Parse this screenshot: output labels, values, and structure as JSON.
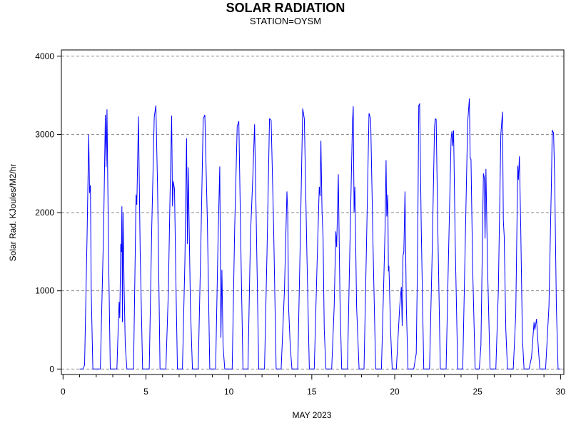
{
  "title": "SOLAR RADIATION",
  "subtitle": "STATION=OYSM",
  "chart_data": {
    "type": "line",
    "title": "SOLAR RADIATION",
    "subtitle": "STATION=OYSM",
    "xlabel": "MAY 2023",
    "ylabel": "Solar Rad. KJoules/M2/hr",
    "xlim": [
      -0.1,
      30.2
    ],
    "ylim": [
      -70,
      4080
    ],
    "x_ticks": [
      0,
      5,
      10,
      15,
      20,
      25,
      30
    ],
    "y_ticks": [
      0,
      1000,
      2000,
      3000,
      4000
    ],
    "grid": "horizontal dashed",
    "line_color": "#0000ff",
    "series": [
      {
        "points": [
          [
            1.0,
            0
          ],
          [
            1.2,
            0
          ],
          [
            1.3,
            50
          ],
          [
            1.45,
            1700
          ],
          [
            1.55,
            3000
          ],
          [
            1.6,
            2250
          ],
          [
            1.65,
            2350
          ],
          [
            1.7,
            1000
          ],
          [
            1.8,
            0
          ],
          [
            2.25,
            0
          ],
          [
            2.45,
            1800
          ],
          [
            2.55,
            3250
          ],
          [
            2.6,
            2580
          ],
          [
            2.65,
            3320
          ],
          [
            2.75,
            1400
          ],
          [
            2.85,
            0
          ],
          [
            3.25,
            0
          ],
          [
            3.35,
            700
          ],
          [
            3.38,
            860
          ],
          [
            3.42,
            650
          ],
          [
            3.48,
            1600
          ],
          [
            3.52,
            1500
          ],
          [
            3.55,
            2080
          ],
          [
            3.58,
            600
          ],
          [
            3.62,
            2000
          ],
          [
            3.68,
            1100
          ],
          [
            3.75,
            300
          ],
          [
            3.85,
            0
          ],
          [
            4.25,
            0
          ],
          [
            4.35,
            1450
          ],
          [
            4.4,
            2230
          ],
          [
            4.45,
            2100
          ],
          [
            4.55,
            3230
          ],
          [
            4.65,
            1500
          ],
          [
            4.8,
            0
          ],
          [
            5.2,
            0
          ],
          [
            5.35,
            1800
          ],
          [
            5.5,
            3220
          ],
          [
            5.6,
            3370
          ],
          [
            5.7,
            2300
          ],
          [
            5.85,
            0
          ],
          [
            6.2,
            0
          ],
          [
            6.35,
            1000
          ],
          [
            6.45,
            2200
          ],
          [
            6.55,
            3240
          ],
          [
            6.6,
            2080
          ],
          [
            6.65,
            2400
          ],
          [
            6.72,
            2300
          ],
          [
            6.8,
            1200
          ],
          [
            6.9,
            0
          ],
          [
            7.2,
            0
          ],
          [
            7.35,
            1400
          ],
          [
            7.45,
            2950
          ],
          [
            7.5,
            1600
          ],
          [
            7.55,
            2580
          ],
          [
            7.68,
            800
          ],
          [
            7.8,
            0
          ],
          [
            8.15,
            0
          ],
          [
            8.3,
            1500
          ],
          [
            8.45,
            3200
          ],
          [
            8.55,
            3250
          ],
          [
            8.7,
            1900
          ],
          [
            8.85,
            0
          ],
          [
            9.2,
            0
          ],
          [
            9.35,
            1700
          ],
          [
            9.45,
            2590
          ],
          [
            9.52,
            400
          ],
          [
            9.58,
            1270
          ],
          [
            9.65,
            300
          ],
          [
            9.75,
            0
          ],
          [
            10.2,
            0
          ],
          [
            10.35,
            1800
          ],
          [
            10.5,
            3100
          ],
          [
            10.6,
            3170
          ],
          [
            10.75,
            1200
          ],
          [
            10.85,
            0
          ],
          [
            11.15,
            0
          ],
          [
            11.3,
            1700
          ],
          [
            11.45,
            2500
          ],
          [
            11.55,
            3130
          ],
          [
            11.65,
            1900
          ],
          [
            11.8,
            0
          ],
          [
            12.15,
            0
          ],
          [
            12.3,
            1500
          ],
          [
            12.45,
            3200
          ],
          [
            12.55,
            3180
          ],
          [
            12.7,
            1800
          ],
          [
            12.85,
            0
          ],
          [
            13.15,
            0
          ],
          [
            13.35,
            1000
          ],
          [
            13.5,
            2270
          ],
          [
            13.55,
            2000
          ],
          [
            13.6,
            800
          ],
          [
            13.7,
            300
          ],
          [
            13.8,
            0
          ],
          [
            14.15,
            0
          ],
          [
            14.3,
            1600
          ],
          [
            14.45,
            3330
          ],
          [
            14.55,
            3200
          ],
          [
            14.7,
            1500
          ],
          [
            14.85,
            0
          ],
          [
            15.15,
            0
          ],
          [
            15.3,
            1200
          ],
          [
            15.45,
            2330
          ],
          [
            15.5,
            2210
          ],
          [
            15.55,
            2920
          ],
          [
            15.62,
            2000
          ],
          [
            15.68,
            1700
          ],
          [
            15.75,
            500
          ],
          [
            15.85,
            0
          ],
          [
            16.2,
            0
          ],
          [
            16.35,
            800
          ],
          [
            16.45,
            1760
          ],
          [
            16.5,
            1560
          ],
          [
            16.6,
            2490
          ],
          [
            16.7,
            900
          ],
          [
            16.8,
            0
          ],
          [
            17.15,
            0
          ],
          [
            17.3,
            1600
          ],
          [
            17.45,
            3150
          ],
          [
            17.5,
            3360
          ],
          [
            17.55,
            2000
          ],
          [
            17.6,
            2330
          ],
          [
            17.7,
            800
          ],
          [
            17.85,
            0
          ],
          [
            18.15,
            0
          ],
          [
            18.3,
            1600
          ],
          [
            18.45,
            3270
          ],
          [
            18.55,
            3200
          ],
          [
            18.7,
            1500
          ],
          [
            18.85,
            0
          ],
          [
            19.2,
            0
          ],
          [
            19.35,
            1200
          ],
          [
            19.42,
            1800
          ],
          [
            19.48,
            2670
          ],
          [
            19.52,
            1950
          ],
          [
            19.58,
            2230
          ],
          [
            19.62,
            1250
          ],
          [
            19.65,
            1320
          ],
          [
            19.75,
            500
          ],
          [
            19.85,
            0
          ],
          [
            20.1,
            0
          ],
          [
            20.3,
            800
          ],
          [
            20.4,
            1050
          ],
          [
            20.45,
            550
          ],
          [
            20.5,
            1450
          ],
          [
            20.55,
            1500
          ],
          [
            20.62,
            2270
          ],
          [
            20.7,
            800
          ],
          [
            20.8,
            0
          ],
          [
            21.15,
            0
          ],
          [
            21.3,
            200
          ],
          [
            21.38,
            1500
          ],
          [
            21.45,
            3370
          ],
          [
            21.5,
            3390
          ],
          [
            21.6,
            1800
          ],
          [
            21.75,
            0
          ],
          [
            22.1,
            0
          ],
          [
            22.25,
            1400
          ],
          [
            22.4,
            3100
          ],
          [
            22.45,
            3200
          ],
          [
            22.5,
            3190
          ],
          [
            22.6,
            1800
          ],
          [
            22.75,
            0
          ],
          [
            23.1,
            0
          ],
          [
            23.25,
            1500
          ],
          [
            23.4,
            2940
          ],
          [
            23.45,
            3040
          ],
          [
            23.5,
            2850
          ],
          [
            23.55,
            3050
          ],
          [
            23.65,
            1600
          ],
          [
            23.8,
            0
          ],
          [
            24.1,
            0
          ],
          [
            24.25,
            1600
          ],
          [
            24.4,
            3150
          ],
          [
            24.5,
            3460
          ],
          [
            24.55,
            2700
          ],
          [
            24.6,
            2680
          ],
          [
            24.7,
            1300
          ],
          [
            24.85,
            0
          ],
          [
            25.1,
            0
          ],
          [
            25.2,
            300
          ],
          [
            25.35,
            2500
          ],
          [
            25.4,
            2450
          ],
          [
            25.45,
            1670
          ],
          [
            25.5,
            2560
          ],
          [
            25.6,
            1300
          ],
          [
            25.75,
            0
          ],
          [
            26.1,
            0
          ],
          [
            26.25,
            1000
          ],
          [
            26.4,
            3000
          ],
          [
            26.5,
            3290
          ],
          [
            26.55,
            1900
          ],
          [
            26.6,
            1700
          ],
          [
            26.7,
            500
          ],
          [
            26.8,
            0
          ],
          [
            27.15,
            0
          ],
          [
            27.3,
            700
          ],
          [
            27.42,
            2600
          ],
          [
            27.46,
            2420
          ],
          [
            27.52,
            2720
          ],
          [
            27.6,
            1800
          ],
          [
            27.7,
            400
          ],
          [
            27.8,
            0
          ],
          [
            28.1,
            0
          ],
          [
            28.25,
            150
          ],
          [
            28.4,
            600
          ],
          [
            28.45,
            500
          ],
          [
            28.55,
            640
          ],
          [
            28.65,
            300
          ],
          [
            28.75,
            0
          ],
          [
            29.1,
            0
          ],
          [
            29.3,
            800
          ],
          [
            29.45,
            2400
          ],
          [
            29.5,
            3050
          ],
          [
            29.58,
            3020
          ],
          [
            29.65,
            2400
          ],
          [
            29.75,
            800
          ],
          [
            29.85,
            0
          ],
          [
            30.0,
            0
          ]
        ]
      }
    ]
  }
}
